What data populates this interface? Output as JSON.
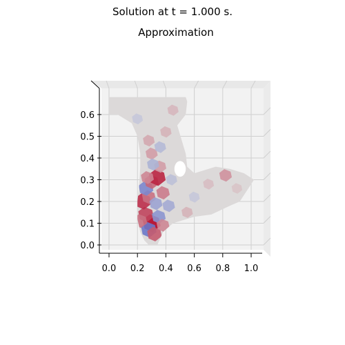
{
  "chart_data": {
    "type": "heatmap",
    "suptitle": "Solution at t = 1.000 s.",
    "title": "Approximation",
    "xlabel": "",
    "ylabel": "",
    "x_ticks": [
      0.0,
      0.2,
      0.4,
      0.6,
      0.8,
      1.0
    ],
    "x_tick_labels": [
      "0.0",
      "0.2",
      "0.4",
      "0.6",
      "0.8",
      "1.0"
    ],
    "y_ticks": [
      0.0,
      0.1,
      0.2,
      0.3,
      0.4,
      0.5,
      0.6
    ],
    "y_tick_labels": [
      "0.0",
      "0.1",
      "0.2",
      "0.3",
      "0.4",
      "0.5",
      "0.6"
    ],
    "xlim": [
      -0.07,
      1.07
    ],
    "ylim": [
      -0.04,
      0.68
    ],
    "colormap": "coolwarm",
    "grid": true,
    "projection": "3d-top-view",
    "domain_outline": [
      [
        0.0,
        0.68
      ],
      [
        0.54,
        0.68
      ],
      [
        0.55,
        0.66
      ],
      [
        0.54,
        0.6
      ],
      [
        0.48,
        0.55
      ],
      [
        0.54,
        0.42
      ],
      [
        0.55,
        0.36
      ],
      [
        0.6,
        0.33
      ],
      [
        0.75,
        0.36
      ],
      [
        0.85,
        0.35
      ],
      [
        0.95,
        0.33
      ],
      [
        1.02,
        0.3
      ],
      [
        0.98,
        0.26
      ],
      [
        0.92,
        0.2
      ],
      [
        0.85,
        0.18
      ],
      [
        0.72,
        0.14
      ],
      [
        0.6,
        0.13
      ],
      [
        0.45,
        0.1
      ],
      [
        0.38,
        0.06
      ],
      [
        0.34,
        0.0
      ],
      [
        0.28,
        0.0
      ],
      [
        0.25,
        0.02
      ],
      [
        0.22,
        0.06
      ],
      [
        0.2,
        0.12
      ],
      [
        0.2,
        0.2
      ],
      [
        0.21,
        0.26
      ],
      [
        0.22,
        0.36
      ],
      [
        0.22,
        0.42
      ],
      [
        0.2,
        0.5
      ],
      [
        0.16,
        0.56
      ],
      [
        0.06,
        0.6
      ],
      [
        0.0,
        0.6
      ]
    ],
    "hole": {
      "center": [
        0.5,
        0.35
      ],
      "radius": 0.04
    },
    "background_value": 0.02,
    "patches": [
      {
        "x": 0.3,
        "y": 0.1,
        "value": 1.0
      },
      {
        "x": 0.28,
        "y": 0.07,
        "value": -0.7
      },
      {
        "x": 0.32,
        "y": 0.05,
        "value": 0.6
      },
      {
        "x": 0.26,
        "y": 0.14,
        "value": 0.7
      },
      {
        "x": 0.35,
        "y": 0.13,
        "value": -0.5
      },
      {
        "x": 0.24,
        "y": 0.2,
        "value": 0.8
      },
      {
        "x": 0.28,
        "y": 0.22,
        "value": 0.5
      },
      {
        "x": 0.33,
        "y": 0.19,
        "value": -0.4
      },
      {
        "x": 0.26,
        "y": 0.26,
        "value": -0.6
      },
      {
        "x": 0.3,
        "y": 0.29,
        "value": 0.55
      },
      {
        "x": 0.34,
        "y": 0.31,
        "value": 0.85
      },
      {
        "x": 0.27,
        "y": 0.31,
        "value": 0.4
      },
      {
        "x": 0.38,
        "y": 0.24,
        "value": 0.45
      },
      {
        "x": 0.42,
        "y": 0.18,
        "value": -0.35
      },
      {
        "x": 0.22,
        "y": 0.11,
        "value": 0.5
      },
      {
        "x": 0.38,
        "y": 0.09,
        "value": 0.4
      },
      {
        "x": 0.3,
        "y": 0.42,
        "value": 0.3
      },
      {
        "x": 0.36,
        "y": 0.45,
        "value": -0.25
      },
      {
        "x": 0.28,
        "y": 0.48,
        "value": 0.25
      },
      {
        "x": 0.4,
        "y": 0.52,
        "value": 0.2
      },
      {
        "x": 0.2,
        "y": 0.58,
        "value": -0.15
      },
      {
        "x": 0.45,
        "y": 0.62,
        "value": 0.18
      },
      {
        "x": 0.82,
        "y": 0.32,
        "value": 0.35
      },
      {
        "x": 0.7,
        "y": 0.28,
        "value": 0.15
      },
      {
        "x": 0.6,
        "y": 0.22,
        "value": -0.15
      },
      {
        "x": 0.55,
        "y": 0.15,
        "value": 0.2
      },
      {
        "x": 0.9,
        "y": 0.26,
        "value": 0.12
      },
      {
        "x": 0.44,
        "y": 0.3,
        "value": -0.2
      },
      {
        "x": 0.36,
        "y": 0.36,
        "value": 0.3
      },
      {
        "x": 0.31,
        "y": 0.37,
        "value": -0.3
      }
    ]
  }
}
